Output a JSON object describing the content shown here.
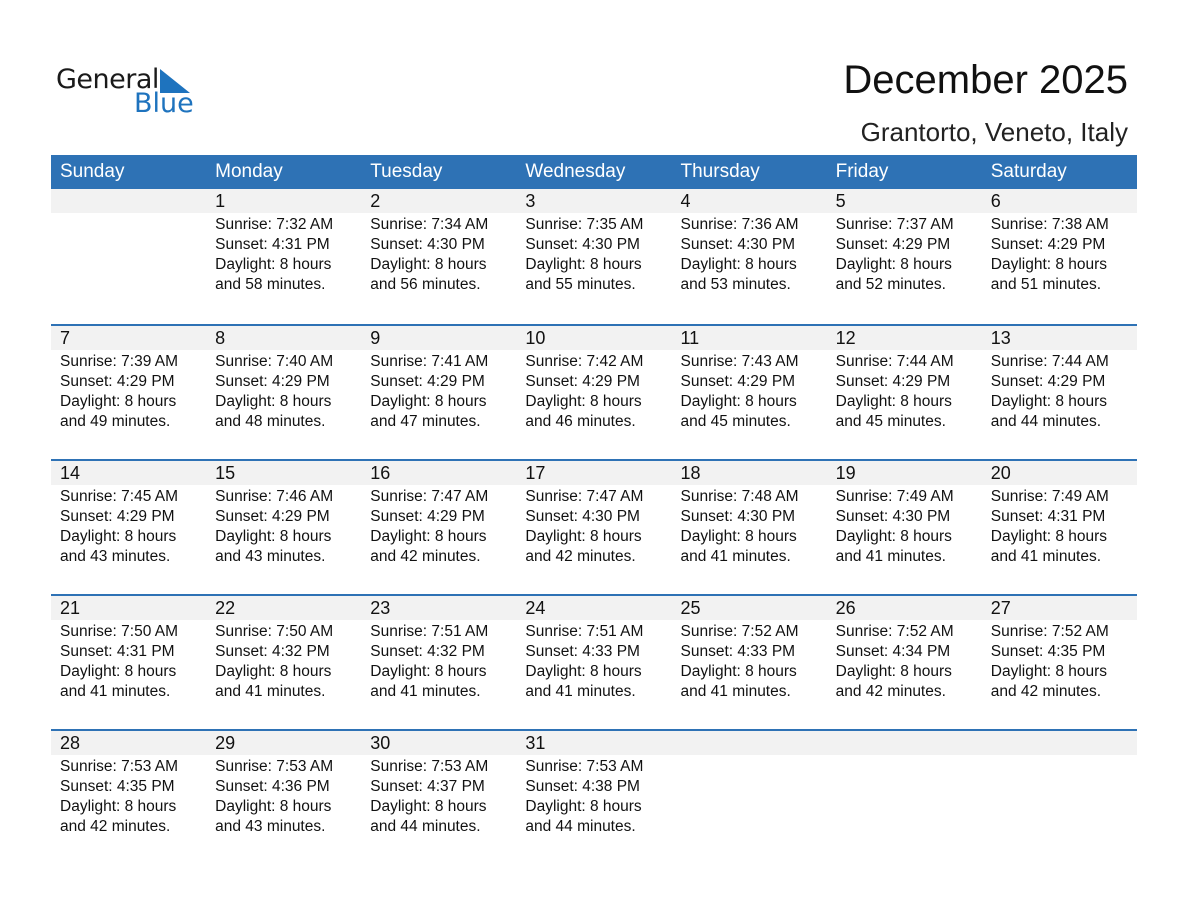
{
  "logo": {
    "text1": "General",
    "text2": "Blue"
  },
  "header": {
    "title": "December 2025",
    "location": "Grantorto, Veneto, Italy"
  },
  "colors": {
    "accent": "#2e72b5",
    "band": "#f2f2f2"
  },
  "weekdays": [
    "Sunday",
    "Monday",
    "Tuesday",
    "Wednesday",
    "Thursday",
    "Friday",
    "Saturday"
  ],
  "first_weekday": 1,
  "days": [
    {
      "d": "1",
      "rise": "Sunrise: 7:32 AM",
      "set": "Sunset: 4:31 PM",
      "dl1": "Daylight: 8 hours",
      "dl2": "and 58 minutes."
    },
    {
      "d": "2",
      "rise": "Sunrise: 7:34 AM",
      "set": "Sunset: 4:30 PM",
      "dl1": "Daylight: 8 hours",
      "dl2": "and 56 minutes."
    },
    {
      "d": "3",
      "rise": "Sunrise: 7:35 AM",
      "set": "Sunset: 4:30 PM",
      "dl1": "Daylight: 8 hours",
      "dl2": "and 55 minutes."
    },
    {
      "d": "4",
      "rise": "Sunrise: 7:36 AM",
      "set": "Sunset: 4:30 PM",
      "dl1": "Daylight: 8 hours",
      "dl2": "and 53 minutes."
    },
    {
      "d": "5",
      "rise": "Sunrise: 7:37 AM",
      "set": "Sunset: 4:29 PM",
      "dl1": "Daylight: 8 hours",
      "dl2": "and 52 minutes."
    },
    {
      "d": "6",
      "rise": "Sunrise: 7:38 AM",
      "set": "Sunset: 4:29 PM",
      "dl1": "Daylight: 8 hours",
      "dl2": "and 51 minutes."
    },
    {
      "d": "7",
      "rise": "Sunrise: 7:39 AM",
      "set": "Sunset: 4:29 PM",
      "dl1": "Daylight: 8 hours",
      "dl2": "and 49 minutes."
    },
    {
      "d": "8",
      "rise": "Sunrise: 7:40 AM",
      "set": "Sunset: 4:29 PM",
      "dl1": "Daylight: 8 hours",
      "dl2": "and 48 minutes."
    },
    {
      "d": "9",
      "rise": "Sunrise: 7:41 AM",
      "set": "Sunset: 4:29 PM",
      "dl1": "Daylight: 8 hours",
      "dl2": "and 47 minutes."
    },
    {
      "d": "10",
      "rise": "Sunrise: 7:42 AM",
      "set": "Sunset: 4:29 PM",
      "dl1": "Daylight: 8 hours",
      "dl2": "and 46 minutes."
    },
    {
      "d": "11",
      "rise": "Sunrise: 7:43 AM",
      "set": "Sunset: 4:29 PM",
      "dl1": "Daylight: 8 hours",
      "dl2": "and 45 minutes."
    },
    {
      "d": "12",
      "rise": "Sunrise: 7:44 AM",
      "set": "Sunset: 4:29 PM",
      "dl1": "Daylight: 8 hours",
      "dl2": "and 45 minutes."
    },
    {
      "d": "13",
      "rise": "Sunrise: 7:44 AM",
      "set": "Sunset: 4:29 PM",
      "dl1": "Daylight: 8 hours",
      "dl2": "and 44 minutes."
    },
    {
      "d": "14",
      "rise": "Sunrise: 7:45 AM",
      "set": "Sunset: 4:29 PM",
      "dl1": "Daylight: 8 hours",
      "dl2": "and 43 minutes."
    },
    {
      "d": "15",
      "rise": "Sunrise: 7:46 AM",
      "set": "Sunset: 4:29 PM",
      "dl1": "Daylight: 8 hours",
      "dl2": "and 43 minutes."
    },
    {
      "d": "16",
      "rise": "Sunrise: 7:47 AM",
      "set": "Sunset: 4:29 PM",
      "dl1": "Daylight: 8 hours",
      "dl2": "and 42 minutes."
    },
    {
      "d": "17",
      "rise": "Sunrise: 7:47 AM",
      "set": "Sunset: 4:30 PM",
      "dl1": "Daylight: 8 hours",
      "dl2": "and 42 minutes."
    },
    {
      "d": "18",
      "rise": "Sunrise: 7:48 AM",
      "set": "Sunset: 4:30 PM",
      "dl1": "Daylight: 8 hours",
      "dl2": "and 41 minutes."
    },
    {
      "d": "19",
      "rise": "Sunrise: 7:49 AM",
      "set": "Sunset: 4:30 PM",
      "dl1": "Daylight: 8 hours",
      "dl2": "and 41 minutes."
    },
    {
      "d": "20",
      "rise": "Sunrise: 7:49 AM",
      "set": "Sunset: 4:31 PM",
      "dl1": "Daylight: 8 hours",
      "dl2": "and 41 minutes."
    },
    {
      "d": "21",
      "rise": "Sunrise: 7:50 AM",
      "set": "Sunset: 4:31 PM",
      "dl1": "Daylight: 8 hours",
      "dl2": "and 41 minutes."
    },
    {
      "d": "22",
      "rise": "Sunrise: 7:50 AM",
      "set": "Sunset: 4:32 PM",
      "dl1": "Daylight: 8 hours",
      "dl2": "and 41 minutes."
    },
    {
      "d": "23",
      "rise": "Sunrise: 7:51 AM",
      "set": "Sunset: 4:32 PM",
      "dl1": "Daylight: 8 hours",
      "dl2": "and 41 minutes."
    },
    {
      "d": "24",
      "rise": "Sunrise: 7:51 AM",
      "set": "Sunset: 4:33 PM",
      "dl1": "Daylight: 8 hours",
      "dl2": "and 41 minutes."
    },
    {
      "d": "25",
      "rise": "Sunrise: 7:52 AM",
      "set": "Sunset: 4:33 PM",
      "dl1": "Daylight: 8 hours",
      "dl2": "and 41 minutes."
    },
    {
      "d": "26",
      "rise": "Sunrise: 7:52 AM",
      "set": "Sunset: 4:34 PM",
      "dl1": "Daylight: 8 hours",
      "dl2": "and 42 minutes."
    },
    {
      "d": "27",
      "rise": "Sunrise: 7:52 AM",
      "set": "Sunset: 4:35 PM",
      "dl1": "Daylight: 8 hours",
      "dl2": "and 42 minutes."
    },
    {
      "d": "28",
      "rise": "Sunrise: 7:53 AM",
      "set": "Sunset: 4:35 PM",
      "dl1": "Daylight: 8 hours",
      "dl2": "and 42 minutes."
    },
    {
      "d": "29",
      "rise": "Sunrise: 7:53 AM",
      "set": "Sunset: 4:36 PM",
      "dl1": "Daylight: 8 hours",
      "dl2": "and 43 minutes."
    },
    {
      "d": "30",
      "rise": "Sunrise: 7:53 AM",
      "set": "Sunset: 4:37 PM",
      "dl1": "Daylight: 8 hours",
      "dl2": "and 44 minutes."
    },
    {
      "d": "31",
      "rise": "Sunrise: 7:53 AM",
      "set": "Sunset: 4:38 PM",
      "dl1": "Daylight: 8 hours",
      "dl2": "and 44 minutes."
    }
  ]
}
